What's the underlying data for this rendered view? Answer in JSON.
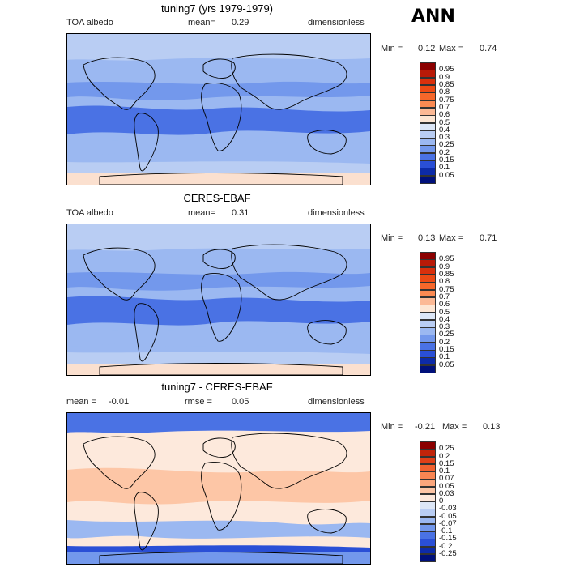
{
  "season": "ANN",
  "panels": [
    {
      "title": "tuning7 (yrs 1979-1979)",
      "left_label": "TOA albedo",
      "mean_label": "mean=",
      "mean_value": "0.29",
      "units": "dimensionless",
      "min_label": "Min =",
      "min_value": "0.12",
      "max_label": "Max =",
      "max_value": "0.74",
      "kind": "abs"
    },
    {
      "title": "CERES-EBAF",
      "left_label": "TOA albedo",
      "mean_label": "mean=",
      "mean_value": "0.31",
      "units": "dimensionless",
      "min_label": "Min =",
      "min_value": "0.13",
      "max_label": "Max =",
      "max_value": "0.71",
      "kind": "abs"
    },
    {
      "title": "tuning7 - CERES-EBAF",
      "left_label": "mean =",
      "mean_label": "rmse =",
      "mean_value": "0.05",
      "left_value": "-0.01",
      "units": "dimensionless",
      "min_label": "Min =",
      "min_value": "-0.21",
      "max_label": "Max =",
      "max_value": "0.13",
      "kind": "diff"
    }
  ],
  "colorbars": {
    "abs": {
      "levels": [
        "0.95",
        "0.9",
        "0.85",
        "0.8",
        "0.75",
        "0.7",
        "0.6",
        "0.5",
        "0.4",
        "0.3",
        "0.25",
        "0.2",
        "0.15",
        "0.1",
        "0.05"
      ],
      "colors": [
        "#8b0000",
        "#b81a08",
        "#d9300c",
        "#ec4a14",
        "#f6672a",
        "#fb8a52",
        "#fcb995",
        "#fde6d3",
        "#dce6f6",
        "#b9cdf3",
        "#9bb8f1",
        "#7398ec",
        "#4a72e4",
        "#2a4fd6",
        "#0d2ba8",
        "#00107a"
      ]
    },
    "diff": {
      "levels": [
        "0.25",
        "0.2",
        "0.15",
        "0.1",
        "0.07",
        "0.05",
        "0.03",
        "0",
        "-0.03",
        "-0.05",
        "-0.07",
        "-0.1",
        "-0.15",
        "-0.2",
        "-0.25"
      ],
      "colors": [
        "#8b0000",
        "#c0240a",
        "#e04018",
        "#f26230",
        "#f88552",
        "#fba67c",
        "#fdc6a6",
        "#fde9dc",
        "#dce6f6",
        "#b9cdf3",
        "#9bb8f1",
        "#7398ec",
        "#4a72e4",
        "#2a4fd6",
        "#0d2ba8",
        "#00107a"
      ]
    }
  }
}
